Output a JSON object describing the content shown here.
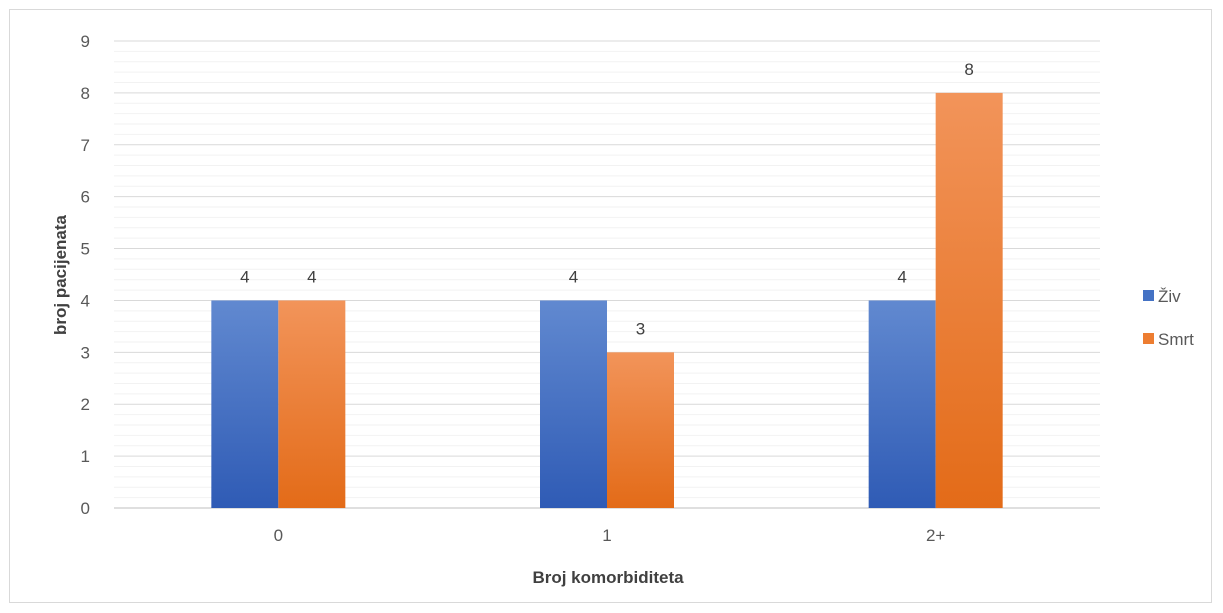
{
  "chart_data": {
    "type": "bar",
    "categories": [
      "0",
      "1",
      "2+"
    ],
    "series": [
      {
        "name": "Živ",
        "values": [
          4,
          4,
          4
        ],
        "color": "#4472c4"
      },
      {
        "name": "Smrt",
        "values": [
          4,
          3,
          8
        ],
        "color": "#ed7d31"
      }
    ],
    "xlabel": "Broj komorbiditeta",
    "ylabel": "broj pacijenata",
    "ylim": [
      0,
      9
    ],
    "yticks": [
      "0",
      "1",
      "2",
      "3",
      "4",
      "5",
      "6",
      "7",
      "8",
      "9"
    ],
    "grid": true,
    "minor_grid": true,
    "legend_position": "right",
    "data_labels": true
  }
}
